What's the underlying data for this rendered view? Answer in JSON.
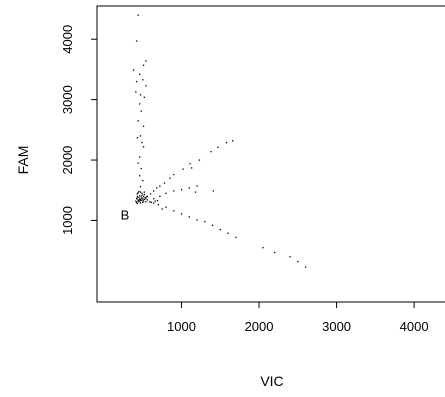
{
  "chart_data": {
    "type": "scatter",
    "title": "",
    "xlabel": "VIC",
    "ylabel": "FAM",
    "xlim": [
      -90,
      4450
    ],
    "ylim": [
      -350,
      4550
    ],
    "xticks": [
      1000,
      2000,
      3000,
      4000
    ],
    "yticks": [
      1000,
      2000,
      3000,
      4000
    ],
    "xtick_labels": [
      "1000",
      "2000",
      "3000",
      "4000"
    ],
    "ytick_labels": [
      "1000",
      "2000",
      "3000",
      "4000"
    ],
    "grid": false,
    "legend": "none",
    "annotations": [
      {
        "text": "B",
        "x": 270,
        "y": 1100
      }
    ],
    "points": [
      [
        440,
        4400
      ],
      [
        420,
        3970
      ],
      [
        540,
        3640
      ],
      [
        510,
        3570
      ],
      [
        380,
        3490
      ],
      [
        460,
        3420
      ],
      [
        500,
        3330
      ],
      [
        420,
        3300
      ],
      [
        540,
        3230
      ],
      [
        410,
        3130
      ],
      [
        470,
        3080
      ],
      [
        520,
        3040
      ],
      [
        460,
        2930
      ],
      [
        480,
        2810
      ],
      [
        440,
        2650
      ],
      [
        510,
        2560
      ],
      [
        470,
        2400
      ],
      [
        430,
        2370
      ],
      [
        490,
        2290
      ],
      [
        510,
        2220
      ],
      [
        460,
        2050
      ],
      [
        440,
        1950
      ],
      [
        480,
        1860
      ],
      [
        460,
        1740
      ],
      [
        500,
        1660
      ],
      [
        470,
        1560
      ],
      [
        450,
        1480
      ],
      [
        520,
        1470
      ],
      [
        430,
        1440
      ],
      [
        1660,
        2320
      ],
      [
        1580,
        2290
      ],
      [
        1470,
        2210
      ],
      [
        1380,
        2140
      ],
      [
        1230,
        2000
      ],
      [
        1110,
        1940
      ],
      [
        1130,
        1870
      ],
      [
        1020,
        1850
      ],
      [
        900,
        1760
      ],
      [
        850,
        1700
      ],
      [
        780,
        1620
      ],
      [
        720,
        1570
      ],
      [
        680,
        1540
      ],
      [
        640,
        1490
      ],
      [
        600,
        1440
      ],
      [
        560,
        1400
      ],
      [
        1200,
        1570
      ],
      [
        1100,
        1540
      ],
      [
        1000,
        1510
      ],
      [
        900,
        1490
      ],
      [
        800,
        1450
      ],
      [
        720,
        1400
      ],
      [
        640,
        1360
      ],
      [
        1410,
        1490
      ],
      [
        1180,
        1470
      ],
      [
        2600,
        230
      ],
      [
        2500,
        320
      ],
      [
        2400,
        400
      ],
      [
        2200,
        470
      ],
      [
        2050,
        550
      ],
      [
        1700,
        720
      ],
      [
        1600,
        790
      ],
      [
        1500,
        850
      ],
      [
        1400,
        920
      ],
      [
        1300,
        980
      ],
      [
        1200,
        1010
      ],
      [
        1100,
        1060
      ],
      [
        1000,
        1110
      ],
      [
        900,
        1160
      ],
      [
        800,
        1220
      ],
      [
        700,
        1260
      ],
      [
        640,
        1290
      ],
      [
        590,
        1310
      ],
      [
        750,
        1190
      ],
      [
        610,
        1300
      ],
      [
        690,
        1330
      ],
      [
        660,
        1320
      ],
      [
        420,
        1300
      ],
      [
        440,
        1310
      ],
      [
        460,
        1320
      ],
      [
        480,
        1330
      ],
      [
        500,
        1340
      ],
      [
        520,
        1350
      ],
      [
        440,
        1340
      ],
      [
        460,
        1350
      ],
      [
        480,
        1360
      ],
      [
        500,
        1370
      ],
      [
        420,
        1360
      ],
      [
        450,
        1380
      ],
      [
        480,
        1390
      ],
      [
        510,
        1400
      ],
      [
        430,
        1400
      ],
      [
        460,
        1410
      ],
      [
        490,
        1420
      ],
      [
        520,
        1430
      ],
      [
        540,
        1360
      ],
      [
        560,
        1340
      ],
      [
        540,
        1310
      ],
      [
        500,
        1300
      ],
      [
        470,
        1290
      ],
      [
        430,
        1280
      ],
      [
        450,
        1330
      ],
      [
        470,
        1345
      ],
      [
        410,
        1320
      ],
      [
        530,
        1380
      ],
      [
        490,
        1450
      ],
      [
        470,
        1470
      ],
      [
        440,
        1460
      ],
      [
        510,
        1320
      ],
      [
        550,
        1390
      ],
      [
        430,
        1375
      ]
    ]
  }
}
